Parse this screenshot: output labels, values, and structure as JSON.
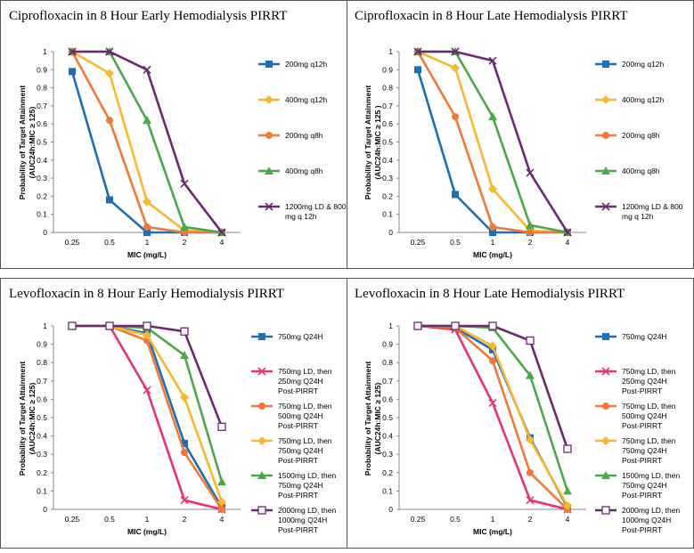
{
  "chart_data": [
    {
      "type": "line",
      "title": "Ciprofloxacin in 8 Hour Early Hemodialysis PIRRT",
      "xlabel": "MIC (mg/L)",
      "ylabel": "Probability of Target Attainment",
      "ylabel_sub": "(AUC24h:MIC ≥ 125)",
      "categories": [
        "0.25",
        "0.5",
        "1",
        "2",
        "4"
      ],
      "ylim": [
        0,
        1
      ],
      "yticks": [
        "0",
        "0.1",
        "0.2",
        "0.3",
        "0.4",
        "0.5",
        "0.6",
        "0.7",
        "0.8",
        "0.9",
        "1"
      ],
      "series": [
        {
          "name": "200mg q12h",
          "values": [
            0.89,
            0.18,
            0.0,
            0.0,
            0.0
          ],
          "color": "#1f6eb3",
          "marker": "square"
        },
        {
          "name": "400mg q12h",
          "values": [
            1.0,
            0.88,
            0.17,
            0.01,
            0.0
          ],
          "color": "#f5b82e",
          "marker": "diamond"
        },
        {
          "name": "200mg q8h",
          "values": [
            1.0,
            0.62,
            0.03,
            0.0,
            0.0
          ],
          "color": "#f07838",
          "marker": "circle"
        },
        {
          "name": "400mg q8h",
          "values": [
            1.0,
            1.0,
            0.62,
            0.03,
            0.0
          ],
          "color": "#4aa84a",
          "marker": "triangle"
        },
        {
          "name": "1200mg LD & 800 mg q 12h",
          "values": [
            1.0,
            1.0,
            0.9,
            0.27,
            0.0
          ],
          "color": "#6a2a6e",
          "marker": "x"
        }
      ]
    },
    {
      "type": "line",
      "title": "Ciprofloxacin in 8 Hour Late Hemodialysis PIRRT",
      "xlabel": "MIC (mg/L)",
      "ylabel": "Probability of Target Attainment",
      "ylabel_sub": "(AUC24h:MIC ≥ 125 )",
      "categories": [
        "0.25",
        "0.5",
        "1",
        "2",
        "4"
      ],
      "ylim": [
        0,
        1
      ],
      "yticks": [
        "0",
        "0.1",
        "0.2",
        "0.3",
        "0.4",
        "0.5",
        "0.6",
        "0.7",
        "0.8",
        "0.9",
        "1"
      ],
      "series": [
        {
          "name": "200mg q12h",
          "values": [
            0.9,
            0.21,
            0.0,
            0.0,
            0.0
          ],
          "color": "#1f6eb3",
          "marker": "square"
        },
        {
          "name": "400mg q12h",
          "values": [
            1.0,
            0.91,
            0.24,
            0.01,
            0.0
          ],
          "color": "#f5b82e",
          "marker": "diamond"
        },
        {
          "name": "200mg q8h",
          "values": [
            1.0,
            0.64,
            0.03,
            0.0,
            0.0
          ],
          "color": "#f07838",
          "marker": "circle"
        },
        {
          "name": "400mg q8h",
          "values": [
            1.0,
            1.0,
            0.64,
            0.04,
            0.0
          ],
          "color": "#4aa84a",
          "marker": "triangle"
        },
        {
          "name": "1200mg LD & 800 mg q 12h",
          "values": [
            1.0,
            1.0,
            0.95,
            0.33,
            0.0
          ],
          "color": "#6a2a6e",
          "marker": "x"
        }
      ]
    },
    {
      "type": "line",
      "title": "Levofloxacin in 8 Hour Early Hemodialysis PIRRT",
      "xlabel": "MIC (mg/L)",
      "ylabel": "Probability of Target Attainment",
      "ylabel_sub": "(AUC24h:MIC ≥ 125)",
      "categories": [
        "0.25",
        "0.5",
        "1",
        "2",
        "4"
      ],
      "ylim": [
        0,
        1
      ],
      "yticks": [
        "0",
        "0.1",
        "0.2",
        "0.3",
        "0.4",
        "0.5",
        "0.6",
        "0.7",
        "0.8",
        "0.9",
        "1"
      ],
      "series": [
        {
          "name": "750mg Q24H",
          "values": [
            1.0,
            1.0,
            0.96,
            0.36,
            0.01
          ],
          "color": "#1f6eb3",
          "marker": "square"
        },
        {
          "name": "750mg LD, then 250mg Q24H Post-PIRRT",
          "values": [
            1.0,
            1.0,
            0.65,
            0.05,
            0.0
          ],
          "color": "#e8336e",
          "marker": "x"
        },
        {
          "name": "750mg LD, then 500mg Q24H Post-PIRRT",
          "values": [
            1.0,
            1.0,
            0.92,
            0.31,
            0.0
          ],
          "color": "#f07838",
          "marker": "circle"
        },
        {
          "name": "750mg LD, then 750mg Q24H Post-PIRRT",
          "values": [
            1.0,
            1.0,
            0.95,
            0.61,
            0.04
          ],
          "color": "#f5b82e",
          "marker": "diamond"
        },
        {
          "name": "1500mg LD, then 750mg Q24H Post-PIRRT",
          "values": [
            1.0,
            1.0,
            0.99,
            0.84,
            0.15
          ],
          "color": "#4aa84a",
          "marker": "triangle"
        },
        {
          "name": "2000mg LD, then 1000mg Q24H Post-PIRRT",
          "values": [
            1.0,
            1.0,
            1.0,
            0.97,
            0.45
          ],
          "color": "#6a2a6e",
          "marker": "open-square"
        }
      ]
    },
    {
      "type": "line",
      "title": "Levofloxacin in 8 Hour Late Hemodialysis PIRRT",
      "xlabel": "MIC (mg/L)",
      "ylabel": "Probability of Target Attainment",
      "ylabel_sub": "(AUC24h:MIC ≥ 125)",
      "categories": [
        "0.25",
        "0.5",
        "1",
        "2",
        "4"
      ],
      "ylim": [
        0,
        1
      ],
      "yticks": [
        "0",
        "0.1",
        "0.2",
        "0.3",
        "0.4",
        "0.5",
        "0.6",
        "0.7",
        "0.8",
        "0.9",
        "1"
      ],
      "series": [
        {
          "name": "750mg Q24H",
          "values": [
            1.0,
            0.99,
            0.87,
            0.39,
            0.01
          ],
          "color": "#1f6eb3",
          "marker": "square"
        },
        {
          "name": "750mg LD, then 250mg Q24H Post-PIRRT",
          "values": [
            1.0,
            0.98,
            0.58,
            0.05,
            0.0
          ],
          "color": "#e8336e",
          "marker": "x"
        },
        {
          "name": "750mg LD, then 500mg Q24H Post-PIRRT",
          "values": [
            1.0,
            0.99,
            0.81,
            0.2,
            0.0
          ],
          "color": "#f07838",
          "marker": "circle"
        },
        {
          "name": "750mg LD, then 750mg Q24H Post-PIRRT",
          "values": [
            1.0,
            1.0,
            0.89,
            0.38,
            0.02
          ],
          "color": "#f5b82e",
          "marker": "diamond"
        },
        {
          "name": "1500mg LD, then 750mg Q24H Post-PIRRT",
          "values": [
            1.0,
            1.0,
            0.99,
            0.73,
            0.1
          ],
          "color": "#4aa84a",
          "marker": "triangle"
        },
        {
          "name": "2000mg LD, then 1000mg Q24H Post-PIRRT",
          "values": [
            1.0,
            1.0,
            1.0,
            0.92,
            0.33
          ],
          "color": "#6a2a6e",
          "marker": "open-square"
        }
      ]
    }
  ]
}
